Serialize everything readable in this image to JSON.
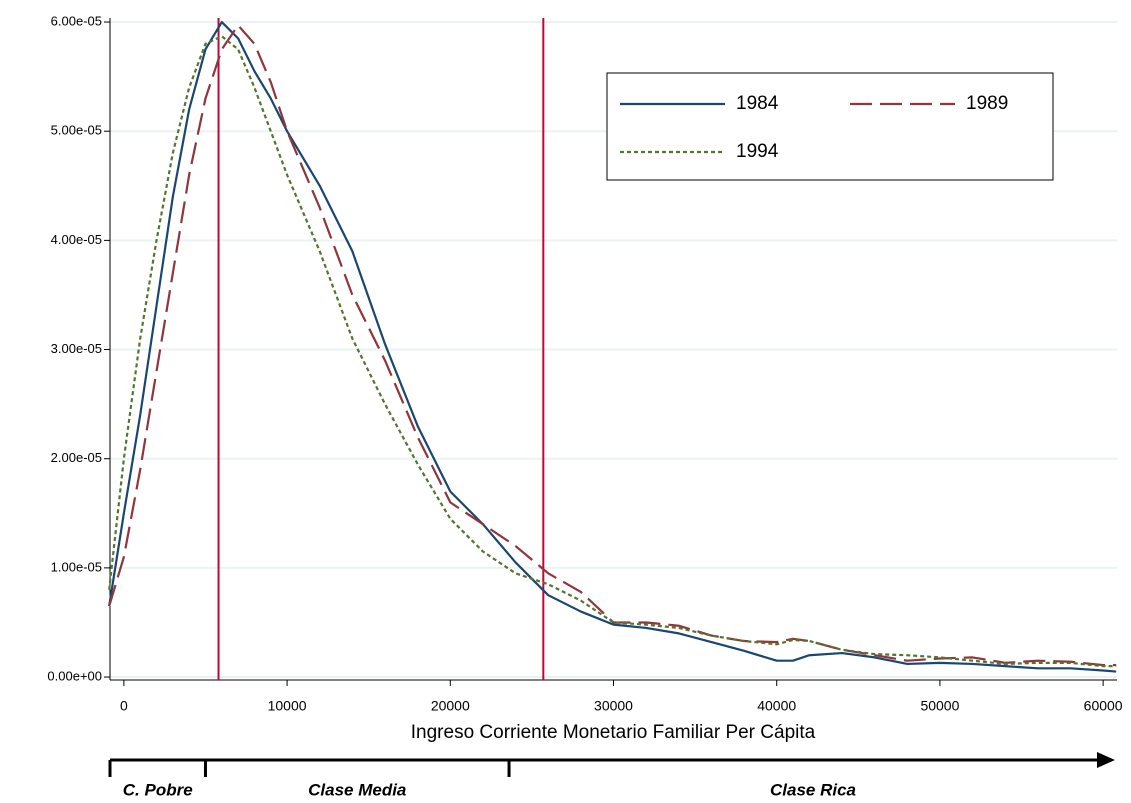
{
  "chart_data": {
    "type": "line",
    "x_label": "Ingreso Corriente Monetario Familiar Per Cápita",
    "x": [
      -900,
      0,
      1000,
      2000,
      3000,
      4000,
      5000,
      6000,
      7000,
      8000,
      9000,
      10000,
      12000,
      14000,
      16000,
      18000,
      20000,
      22000,
      24000,
      26000,
      28000,
      30000,
      32000,
      34000,
      36000,
      38000,
      40000,
      41000,
      42000,
      44000,
      46000,
      48000,
      50000,
      52000,
      54000,
      56000,
      58000,
      60000,
      60800
    ],
    "series": [
      {
        "name": "1984",
        "color": "#1a476f",
        "dash": "solid",
        "values": [
          6.5e-06,
          1.5e-05,
          2.4e-05,
          3.4e-05,
          4.4e-05,
          5.2e-05,
          5.75e-05,
          6e-05,
          5.85e-05,
          5.55e-05,
          5.3e-05,
          5e-05,
          4.5e-05,
          3.9e-05,
          3.05e-05,
          2.3e-05,
          1.7e-05,
          1.4e-05,
          1.05e-05,
          7.5e-06,
          6e-06,
          4.8e-06,
          4.5e-06,
          4e-06,
          3.2e-06,
          2.4e-06,
          1.5e-06,
          1.5e-06,
          2e-06,
          2.2e-06,
          1.8e-06,
          1.2e-06,
          1.3e-06,
          1.2e-06,
          1e-06,
          8e-07,
          8e-07,
          6e-07,
          5e-07
        ]
      },
      {
        "name": "1989",
        "color": "#90353b",
        "dash": "long-dash",
        "values": [
          6.5e-06,
          1.1e-05,
          1.9e-05,
          2.8e-05,
          3.7e-05,
          4.6e-05,
          5.3e-05,
          5.75e-05,
          5.97e-05,
          5.8e-05,
          5.45e-05,
          5e-05,
          4.3e-05,
          3.5e-05,
          2.9e-05,
          2.2e-05,
          1.6e-05,
          1.4e-05,
          1.2e-05,
          9.5e-06,
          7.8e-06,
          5e-06,
          5e-06,
          4.7e-06,
          3.8e-06,
          3.3e-06,
          3.2e-06,
          3.5e-06,
          3.3e-06,
          2.5e-06,
          2e-06,
          1.5e-06,
          1.7e-06,
          1.8e-06,
          1.3e-06,
          1.5e-06,
          1.4e-06,
          1.1e-06,
          1.1e-06
        ]
      },
      {
        "name": "1994",
        "color": "#55752f",
        "dash": "dotted",
        "values": [
          8e-06,
          2e-05,
          3.1e-05,
          4e-05,
          4.8e-05,
          5.4e-05,
          5.8e-05,
          5.87e-05,
          5.75e-05,
          5.4e-05,
          5e-05,
          4.6e-05,
          3.9e-05,
          3.1e-05,
          2.5e-05,
          1.95e-05,
          1.45e-05,
          1.15e-05,
          9.5e-06,
          8.5e-06,
          7e-06,
          5e-06,
          4.8e-06,
          4.5e-06,
          3.8e-06,
          3.3e-06,
          3e-06,
          3.4e-06,
          3.3e-06,
          2.5e-06,
          2.1e-06,
          2e-06,
          1.8e-06,
          1.5e-06,
          1.2e-06,
          1.3e-06,
          1.3e-06,
          1e-06,
          1e-06
        ]
      }
    ],
    "xlim": [
      -850,
      60850
    ],
    "ylim": [
      -2.7e-07,
      6.037e-05
    ],
    "xticks": [
      0,
      10000,
      20000,
      30000,
      40000,
      50000,
      60000
    ],
    "yticks": [
      {
        "value": 0,
        "label": "0.00e+00"
      },
      {
        "value": 1e-05,
        "label": "1.00e-05"
      },
      {
        "value": 2e-05,
        "label": "2.00e-05"
      },
      {
        "value": 3e-05,
        "label": "3.00e-05"
      },
      {
        "value": 4e-05,
        "label": "4.00e-05"
      },
      {
        "value": 5e-05,
        "label": "5.00e-05"
      },
      {
        "value": 6e-05,
        "label": "6.00e-05"
      }
    ],
    "grid": true,
    "legend_position": "top-right",
    "vlines": {
      "color": "#c10534",
      "values": [
        5800,
        25700
      ]
    },
    "classes": [
      {
        "label": "C. Pobre",
        "start": -850
      },
      {
        "label": "Clase Media",
        "start": 5000
      },
      {
        "label": "Clase Rica",
        "start": 23600
      }
    ]
  }
}
